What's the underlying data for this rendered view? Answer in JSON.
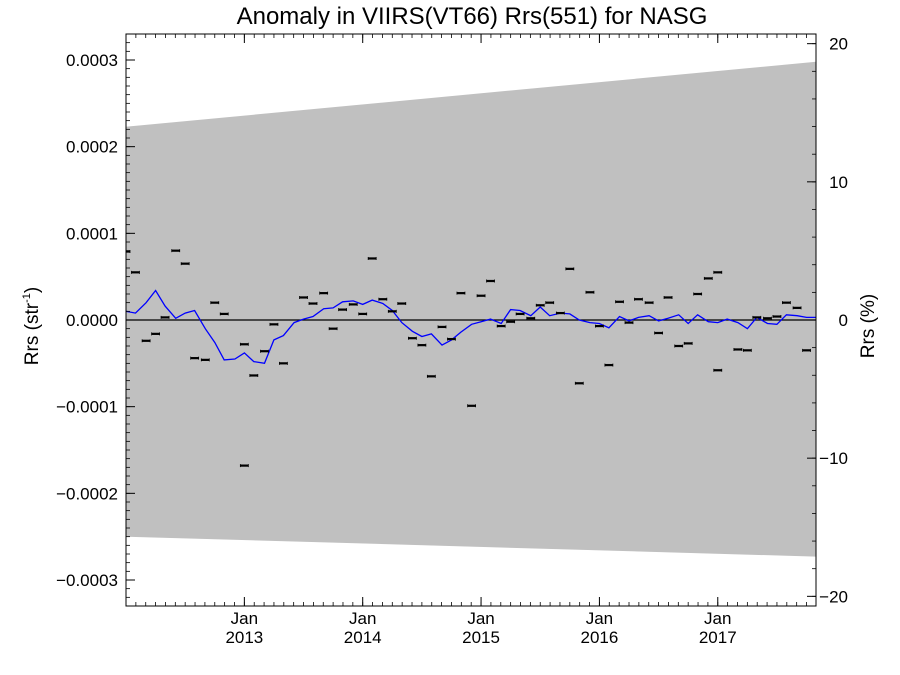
{
  "chart_data": {
    "type": "scatter",
    "title": "Anomaly in VIIRS(VT66) Rrs(551) for NASG",
    "ylabel_left_base": "Rrs (str",
    "ylabel_left_sup": "-1",
    "ylabel_left_end": ")",
    "ylabel_right": "Rrs (%)",
    "xlim": [
      2012.0,
      2017.83
    ],
    "ylim_left": [
      -0.00033,
      0.00033
    ],
    "ylim_right": [
      -20.7,
      20.7
    ],
    "grid": false,
    "legend": "none",
    "left_ticks": [
      {
        "value": 0.0003,
        "label": "0.0003"
      },
      {
        "value": 0.0002,
        "label": "0.0002"
      },
      {
        "value": 0.0001,
        "label": "0.0001"
      },
      {
        "value": 0.0,
        "label": "0.0000"
      },
      {
        "value": -0.0001,
        "label": "−0.0001"
      },
      {
        "value": -0.0002,
        "label": "−0.0002"
      },
      {
        "value": -0.0003,
        "label": "−0.0003"
      }
    ],
    "right_ticks": [
      {
        "value": 20,
        "label": "20"
      },
      {
        "value": 10,
        "label": "10"
      },
      {
        "value": 0,
        "label": "0"
      },
      {
        "value": -10,
        "label": "−10"
      },
      {
        "value": -20,
        "label": "−20"
      }
    ],
    "x_ticks": [
      {
        "value": 2013.0,
        "month": "Jan",
        "year": "2013"
      },
      {
        "value": 2014.0,
        "month": "Jan",
        "year": "2014"
      },
      {
        "value": 2015.0,
        "month": "Jan",
        "year": "2015"
      },
      {
        "value": 2016.0,
        "month": "Jan",
        "year": "2016"
      },
      {
        "value": 2017.0,
        "month": "Jan",
        "year": "2017"
      }
    ],
    "band": {
      "x": [
        2012.0,
        2017.83
      ],
      "upper": [
        0.000223,
        0.000298
      ],
      "lower": [
        -0.00025,
        -0.000273
      ],
      "color": "#c0c0c0"
    },
    "zero_line": 0.0,
    "colors": {
      "points": "#000000",
      "trend": "#0000ff",
      "axes": "#000000"
    },
    "points": [
      {
        "x": 2012.0,
        "y": 7.9e-05
      },
      {
        "x": 2012.08,
        "y": 5.5e-05
      },
      {
        "x": 2012.17,
        "y": -2.4e-05
      },
      {
        "x": 2012.25,
        "y": -1.6e-05
      },
      {
        "x": 2012.33,
        "y": 3e-06
      },
      {
        "x": 2012.42,
        "y": 8e-05
      },
      {
        "x": 2012.5,
        "y": 6.5e-05
      },
      {
        "x": 2012.58,
        "y": -4.4e-05
      },
      {
        "x": 2012.67,
        "y": -4.6e-05
      },
      {
        "x": 2012.75,
        "y": 2e-05
      },
      {
        "x": 2012.83,
        "y": 7e-06
      },
      {
        "x": 2013.0,
        "y": -0.000168
      },
      {
        "x": 2013.0,
        "y": -2.8e-05
      },
      {
        "x": 2013.08,
        "y": -6.4e-05
      },
      {
        "x": 2013.17,
        "y": -3.6e-05
      },
      {
        "x": 2013.25,
        "y": -5e-06
      },
      {
        "x": 2013.33,
        "y": -5e-05
      },
      {
        "x": 2013.5,
        "y": 2.6e-05
      },
      {
        "x": 2013.58,
        "y": 1.9e-05
      },
      {
        "x": 2013.67,
        "y": 3.1e-05
      },
      {
        "x": 2013.75,
        "y": -1e-05
      },
      {
        "x": 2013.83,
        "y": 1.2e-05
      },
      {
        "x": 2013.92,
        "y": 1.8e-05
      },
      {
        "x": 2014.0,
        "y": 7e-06
      },
      {
        "x": 2014.08,
        "y": 7.1e-05
      },
      {
        "x": 2014.17,
        "y": 2.4e-05
      },
      {
        "x": 2014.25,
        "y": 1e-05
      },
      {
        "x": 2014.33,
        "y": 1.9e-05
      },
      {
        "x": 2014.42,
        "y": -2.1e-05
      },
      {
        "x": 2014.5,
        "y": -2.9e-05
      },
      {
        "x": 2014.58,
        "y": -6.5e-05
      },
      {
        "x": 2014.67,
        "y": -8e-06
      },
      {
        "x": 2014.75,
        "y": -2.2e-05
      },
      {
        "x": 2014.83,
        "y": 3.1e-05
      },
      {
        "x": 2014.92,
        "y": -9.9e-05
      },
      {
        "x": 2015.0,
        "y": 2.8e-05
      },
      {
        "x": 2015.08,
        "y": 4.5e-05
      },
      {
        "x": 2015.17,
        "y": -7e-06
      },
      {
        "x": 2015.25,
        "y": -2e-06
      },
      {
        "x": 2015.33,
        "y": 7e-06
      },
      {
        "x": 2015.42,
        "y": 2e-06
      },
      {
        "x": 2015.5,
        "y": 1.7e-05
      },
      {
        "x": 2015.58,
        "y": 2e-05
      },
      {
        "x": 2015.67,
        "y": 8e-06
      },
      {
        "x": 2015.75,
        "y": 5.9e-05
      },
      {
        "x": 2015.83,
        "y": -7.3e-05
      },
      {
        "x": 2015.92,
        "y": 3.2e-05
      },
      {
        "x": 2016.0,
        "y": -7e-06
      },
      {
        "x": 2016.08,
        "y": -5.2e-05
      },
      {
        "x": 2016.17,
        "y": 2.1e-05
      },
      {
        "x": 2016.25,
        "y": -3e-06
      },
      {
        "x": 2016.33,
        "y": 2.4e-05
      },
      {
        "x": 2016.42,
        "y": 2e-05
      },
      {
        "x": 2016.5,
        "y": -1.5e-05
      },
      {
        "x": 2016.58,
        "y": 2.6e-05
      },
      {
        "x": 2016.67,
        "y": -3e-05
      },
      {
        "x": 2016.75,
        "y": -2.7e-05
      },
      {
        "x": 2016.83,
        "y": 3e-05
      },
      {
        "x": 2016.92,
        "y": 4.8e-05
      },
      {
        "x": 2017.0,
        "y": -5.8e-05
      },
      {
        "x": 2017.0,
        "y": 5.5e-05
      },
      {
        "x": 2017.17,
        "y": -3.4e-05
      },
      {
        "x": 2017.25,
        "y": -3.5e-05
      },
      {
        "x": 2017.33,
        "y": 3e-06
      },
      {
        "x": 2017.42,
        "y": 2e-06
      },
      {
        "x": 2017.5,
        "y": 4e-06
      },
      {
        "x": 2017.58,
        "y": 2e-05
      },
      {
        "x": 2017.67,
        "y": 1.4e-05
      },
      {
        "x": 2017.75,
        "y": -3.5e-05
      }
    ],
    "trend": [
      {
        "x": 2012.0,
        "y": 1e-05
      },
      {
        "x": 2012.08,
        "y": 8e-06
      },
      {
        "x": 2012.17,
        "y": 2e-05
      },
      {
        "x": 2012.25,
        "y": 3.4e-05
      },
      {
        "x": 2012.33,
        "y": 1.6e-05
      },
      {
        "x": 2012.42,
        "y": 2e-06
      },
      {
        "x": 2012.5,
        "y": 8e-06
      },
      {
        "x": 2012.58,
        "y": 1.1e-05
      },
      {
        "x": 2012.67,
        "y": -1e-05
      },
      {
        "x": 2012.75,
        "y": -2.6e-05
      },
      {
        "x": 2012.83,
        "y": -4.6e-05
      },
      {
        "x": 2012.92,
        "y": -4.5e-05
      },
      {
        "x": 2013.0,
        "y": -3.8e-05
      },
      {
        "x": 2013.08,
        "y": -4.8e-05
      },
      {
        "x": 2013.17,
        "y": -5e-05
      },
      {
        "x": 2013.25,
        "y": -2.3e-05
      },
      {
        "x": 2013.33,
        "y": -1.8e-05
      },
      {
        "x": 2013.42,
        "y": -3e-06
      },
      {
        "x": 2013.5,
        "y": 1e-06
      },
      {
        "x": 2013.58,
        "y": 4e-06
      },
      {
        "x": 2013.67,
        "y": 1.3e-05
      },
      {
        "x": 2013.75,
        "y": 1.4e-05
      },
      {
        "x": 2013.83,
        "y": 2.1e-05
      },
      {
        "x": 2013.92,
        "y": 2.2e-05
      },
      {
        "x": 2014.0,
        "y": 1.8e-05
      },
      {
        "x": 2014.08,
        "y": 2.3e-05
      },
      {
        "x": 2014.17,
        "y": 1.9e-05
      },
      {
        "x": 2014.25,
        "y": 1.1e-05
      },
      {
        "x": 2014.33,
        "y": -3e-06
      },
      {
        "x": 2014.42,
        "y": -1.3e-05
      },
      {
        "x": 2014.5,
        "y": -1.9e-05
      },
      {
        "x": 2014.58,
        "y": -1.6e-05
      },
      {
        "x": 2014.67,
        "y": -2.9e-05
      },
      {
        "x": 2014.75,
        "y": -2.3e-05
      },
      {
        "x": 2014.83,
        "y": -1.4e-05
      },
      {
        "x": 2014.92,
        "y": -5e-06
      },
      {
        "x": 2015.0,
        "y": -2e-06
      },
      {
        "x": 2015.08,
        "y": 1e-06
      },
      {
        "x": 2015.17,
        "y": -4e-06
      },
      {
        "x": 2015.25,
        "y": 1.2e-05
      },
      {
        "x": 2015.33,
        "y": 1.1e-05
      },
      {
        "x": 2015.42,
        "y": 5e-06
      },
      {
        "x": 2015.5,
        "y": 1.5e-05
      },
      {
        "x": 2015.58,
        "y": 5e-06
      },
      {
        "x": 2015.67,
        "y": 8e-06
      },
      {
        "x": 2015.75,
        "y": 7e-06
      },
      {
        "x": 2015.83,
        "y": 0.0
      },
      {
        "x": 2015.92,
        "y": -3e-06
      },
      {
        "x": 2016.0,
        "y": -4e-06
      },
      {
        "x": 2016.08,
        "y": -9e-06
      },
      {
        "x": 2016.17,
        "y": 4e-06
      },
      {
        "x": 2016.25,
        "y": -1e-06
      },
      {
        "x": 2016.33,
        "y": 3e-06
      },
      {
        "x": 2016.42,
        "y": 5e-06
      },
      {
        "x": 2016.5,
        "y": -1e-06
      },
      {
        "x": 2016.58,
        "y": 2e-06
      },
      {
        "x": 2016.67,
        "y": 6e-06
      },
      {
        "x": 2016.75,
        "y": -4e-06
      },
      {
        "x": 2016.83,
        "y": 6e-06
      },
      {
        "x": 2016.92,
        "y": -2e-06
      },
      {
        "x": 2017.0,
        "y": -3e-06
      },
      {
        "x": 2017.08,
        "y": 1e-06
      },
      {
        "x": 2017.17,
        "y": -3e-06
      },
      {
        "x": 2017.25,
        "y": -1e-05
      },
      {
        "x": 2017.33,
        "y": 3e-06
      },
      {
        "x": 2017.42,
        "y": -4e-06
      },
      {
        "x": 2017.5,
        "y": -5e-06
      },
      {
        "x": 2017.58,
        "y": 6e-06
      },
      {
        "x": 2017.67,
        "y": 5e-06
      },
      {
        "x": 2017.75,
        "y": 3e-06
      },
      {
        "x": 2017.83,
        "y": 3e-06
      }
    ]
  }
}
